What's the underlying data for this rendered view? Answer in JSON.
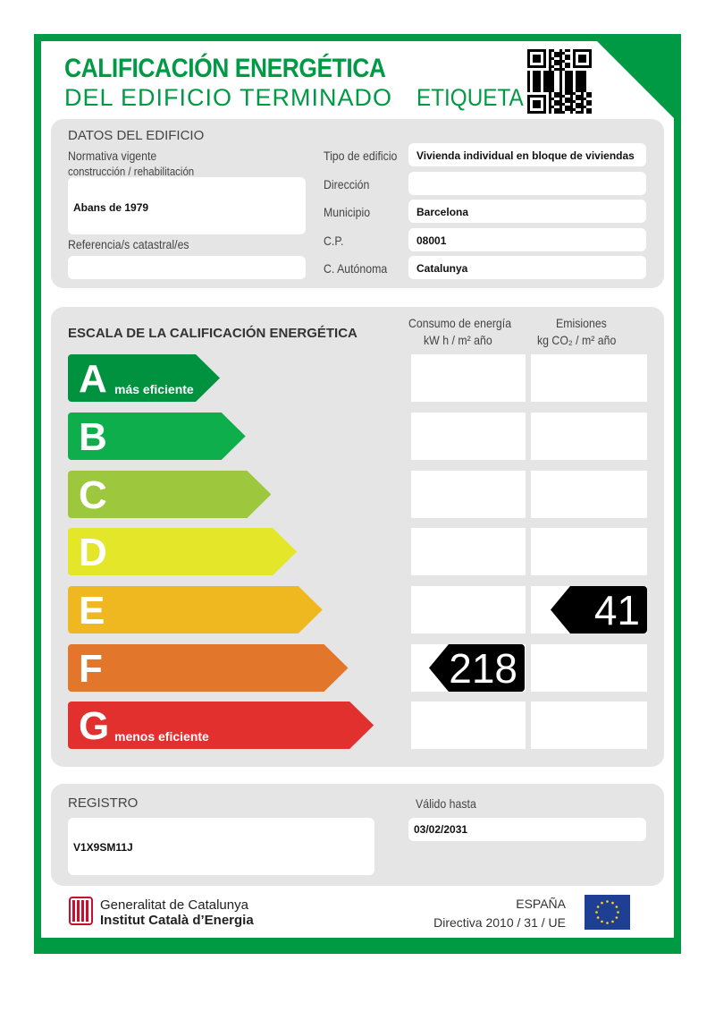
{
  "header": {
    "title_line1": "CALIFICACIÓN ENERGÉTICA",
    "title_line2": "DEL EDIFICIO TERMINADO",
    "label": "ETIQUETA"
  },
  "building": {
    "section_title": "DATOS DEL EDIFICIO",
    "normativa_label_1": "Normativa vigente",
    "normativa_label_2": "construcción / rehabilitación",
    "normativa_value": "Abans de 1979",
    "referencia_label": "Referencia/s catastral/es",
    "referencia_value": "",
    "fields": [
      {
        "label": "Tipo de edificio",
        "value": "Vivienda individual en bloque de viviendas"
      },
      {
        "label": "Dirección",
        "value": ""
      },
      {
        "label": "Municipio",
        "value": "Barcelona"
      },
      {
        "label": "C.P.",
        "value": "08001"
      },
      {
        "label": "C. Autónoma",
        "value": "Catalunya"
      }
    ]
  },
  "scale": {
    "title": "ESCALA DE LA CALIFICACIÓN ENERGÉTICA",
    "consumo_header_1": "Consumo de energía",
    "consumo_header_2": "kW h  / m² año",
    "emisiones_header_1": "Emisiones",
    "emisiones_header_2": "kg CO₂  / m² año",
    "classes": [
      {
        "letter": "A",
        "sub": "más eficiente",
        "color": "#00923f"
      },
      {
        "letter": "B",
        "sub": "",
        "color": "#0dae4b"
      },
      {
        "letter": "C",
        "sub": "",
        "color": "#9dc73c"
      },
      {
        "letter": "D",
        "sub": "",
        "color": "#e4e629"
      },
      {
        "letter": "E",
        "sub": "",
        "color": "#f0b820"
      },
      {
        "letter": "F",
        "sub": "",
        "color": "#e2762a"
      },
      {
        "letter": "G",
        "sub": "menos eficiente",
        "color": "#e2302e"
      }
    ],
    "consumo": {
      "class": "F",
      "value": "218"
    },
    "emisiones": {
      "class": "E",
      "value": "41"
    }
  },
  "registro": {
    "label": "REGISTRO",
    "value": "V1X9SM11J",
    "valido_label": "Válido hasta",
    "valido_value": "03/02/2031"
  },
  "footer": {
    "org_line1": "Generalitat de Catalunya",
    "org_line2": "Institut Català d’Energia",
    "country": "ESPAÑA",
    "directive": "Directiva 2010 / 31 / UE"
  },
  "colors": {
    "brand_green": "#009a44",
    "panel_gray": "#e5e5e5"
  }
}
